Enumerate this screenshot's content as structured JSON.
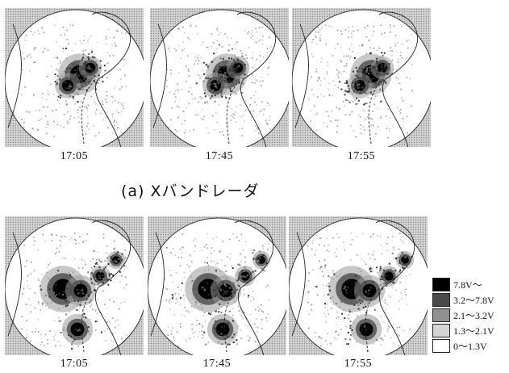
{
  "caption_a": "(a) Xバンドレーダ",
  "row_a": [
    {
      "time": "17:05"
    },
    {
      "time": "17:45"
    },
    {
      "time": "17:55"
    }
  ],
  "row_b": [
    {
      "time": "17:05"
    },
    {
      "time": "17:45"
    },
    {
      "time": "17:55"
    }
  ],
  "legend": [
    {
      "label": "7.8V～",
      "color": "#000000"
    },
    {
      "label": "3.2～7.8V",
      "color": "#4a4a4a"
    },
    {
      "label": "2.1～3.2V",
      "color": "#8f8f8f"
    },
    {
      "label": "1.3～2.1V",
      "color": "#d4d4d4"
    },
    {
      "label": "0～1.3V",
      "color": "#ffffff"
    }
  ]
}
